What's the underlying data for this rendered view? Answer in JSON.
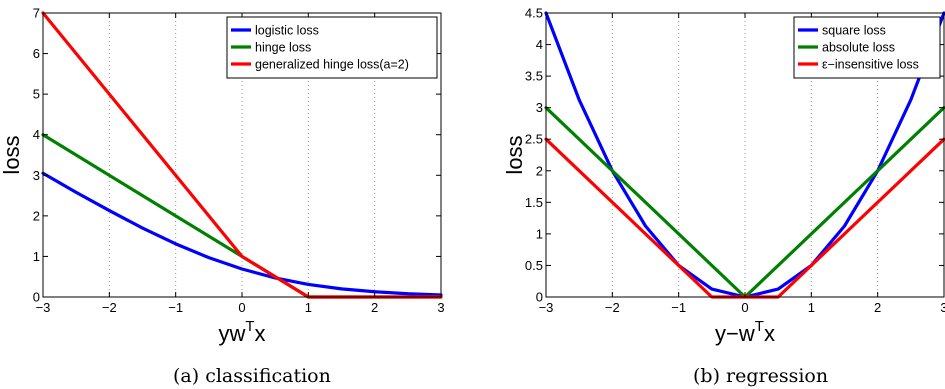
{
  "chart_data": [
    {
      "type": "line",
      "caption": "(a) classification",
      "xlabel": "yw",
      "xlabel_sup": "T",
      "xlabel_tail": "x",
      "ylabel": "loss",
      "xlim": [
        -3,
        3
      ],
      "ylim": [
        0,
        7
      ],
      "xticks": [
        -3,
        -2,
        -1,
        0,
        1,
        2,
        3
      ],
      "xtick_labels": [
        "−3",
        "−2",
        "−1",
        "0",
        "1",
        "2",
        "3"
      ],
      "yticks": [
        0,
        1,
        2,
        3,
        4,
        5,
        6,
        7
      ],
      "ytick_labels": [
        "0",
        "1",
        "2",
        "3",
        "4",
        "5",
        "6",
        "7"
      ],
      "grid": "vertical dotted",
      "legend_position": "top-right",
      "series": [
        {
          "name": "logistic loss",
          "color": "#0000ff",
          "x": [
            -3,
            -2.5,
            -2,
            -1.5,
            -1,
            -0.5,
            0,
            0.5,
            1,
            1.5,
            2,
            2.5,
            3
          ],
          "y": [
            3.05,
            2.58,
            2.13,
            1.7,
            1.31,
            0.97,
            0.69,
            0.47,
            0.31,
            0.2,
            0.13,
            0.08,
            0.05
          ]
        },
        {
          "name": "hinge loss",
          "color": "#008000",
          "x": [
            -3,
            0,
            1,
            3
          ],
          "y": [
            4,
            1,
            0,
            0
          ]
        },
        {
          "name": "generalized hinge loss(a=2)",
          "color": "#ff0000",
          "x": [
            -3,
            0,
            1,
            3
          ],
          "y": [
            7,
            1,
            0,
            0
          ]
        }
      ]
    },
    {
      "type": "line",
      "caption": "(b) regression",
      "xlabel": "y−w",
      "xlabel_sup": "T",
      "xlabel_tail": "x",
      "ylabel": "loss",
      "xlim": [
        -3,
        3
      ],
      "ylim": [
        0,
        4.5
      ],
      "xticks": [
        -3,
        -2,
        -1,
        0,
        1,
        2,
        3
      ],
      "xtick_labels": [
        "−3",
        "−2",
        "−1",
        "0",
        "1",
        "2",
        "3"
      ],
      "yticks": [
        0,
        0.5,
        1,
        1.5,
        2,
        2.5,
        3,
        3.5,
        4,
        4.5
      ],
      "ytick_labels": [
        "0",
        "0.5",
        "1",
        "1.5",
        "2",
        "2.5",
        "3",
        "3.5",
        "4",
        "4.5"
      ],
      "grid": "vertical dotted",
      "legend_position": "top-right",
      "series": [
        {
          "name": "square loss",
          "color": "#0000ff",
          "x": [
            -3,
            -2.5,
            -2,
            -1.5,
            -1,
            -0.5,
            0,
            0.5,
            1,
            1.5,
            2,
            2.5,
            3
          ],
          "y": [
            4.5,
            3.125,
            2,
            1.125,
            0.5,
            0.125,
            0,
            0.125,
            0.5,
            1.125,
            2,
            3.125,
            4.5
          ]
        },
        {
          "name": "absolute loss",
          "color": "#008000",
          "x": [
            -3,
            0,
            3
          ],
          "y": [
            3,
            0,
            3
          ]
        },
        {
          "name": "ε−insensitive loss",
          "color": "#ff0000",
          "x": [
            -3,
            -0.5,
            0.5,
            3
          ],
          "y": [
            2.5,
            0,
            0,
            2.5
          ]
        }
      ]
    }
  ]
}
